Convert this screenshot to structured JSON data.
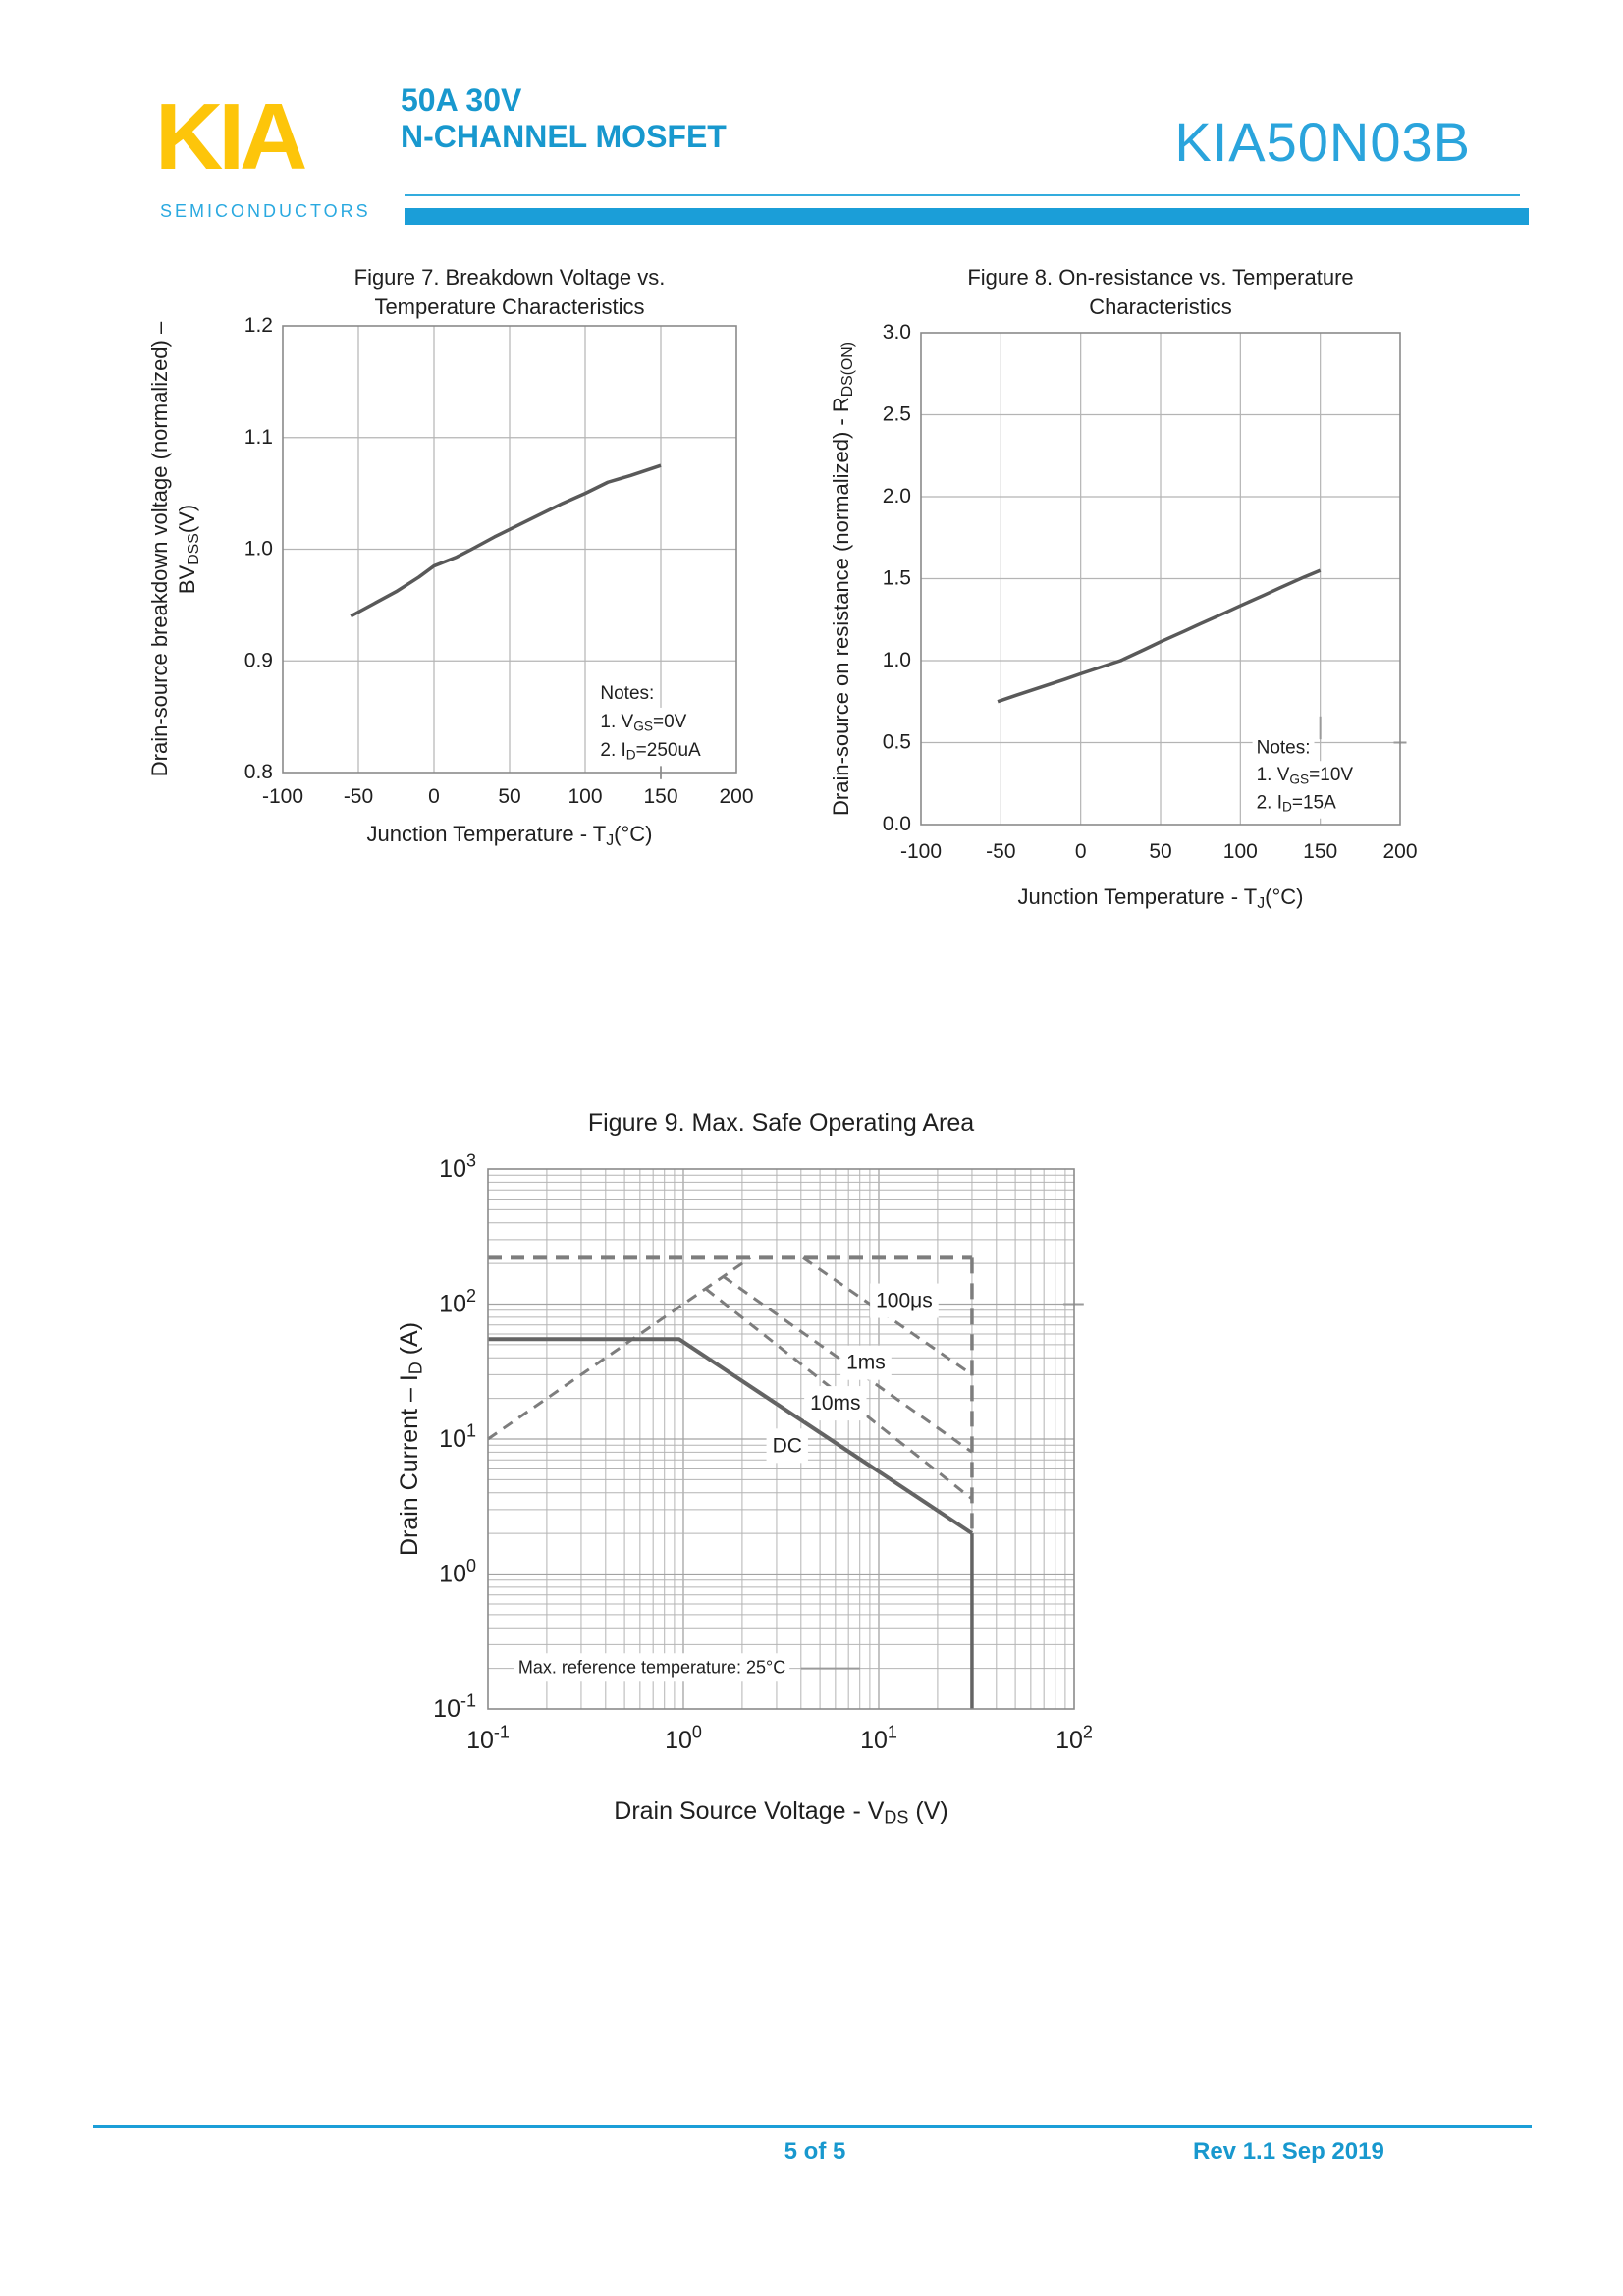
{
  "header": {
    "logo_text": "KIA",
    "logo_subtext": "SEMICONDUCTORS",
    "subtitle_line1": "50A 30V",
    "subtitle_line2": "N-CHANNEL MOSFET",
    "part_number": "KIA50N03B",
    "colors": {
      "logo_yellow": "#FDC50A",
      "subtitle_blue": "#1898CE",
      "part_number_cyan": "#2AA4DC",
      "rule_cyan": "#1B9ED8"
    }
  },
  "footer": {
    "page_indicator": "5 of 5",
    "revision": "Rev 1.1 Sep 2019"
  },
  "chart_data": [
    {
      "id": "figure7",
      "type": "line",
      "title_lines": [
        "Figure 7. Breakdown Voltage vs.",
        "Temperature Characteristics"
      ],
      "xlabel": "Junction Temperature - T~J~(°C)",
      "ylabel_lines": [
        "Drain-source breakdown voltage (normalized)  –",
        "BV~DSS~(V)"
      ],
      "xlim": [
        -100,
        200
      ],
      "ylim": [
        0.8,
        1.2
      ],
      "xticks": [
        -100,
        -50,
        0,
        50,
        100,
        150,
        200
      ],
      "xtick_labels": [
        "-100",
        "-50",
        "0",
        "50",
        "100",
        "150",
        "200"
      ],
      "yticks": [
        0.8,
        0.9,
        1.0,
        1.1,
        1.2
      ],
      "ytick_labels": [
        "0.8",
        "0.9",
        "1.0",
        "1.1",
        "1.2"
      ],
      "grid": true,
      "series": [
        {
          "name": "breakdown-voltage-normalized",
          "dash": null,
          "width": 3.5,
          "points": [
            [
              -55,
              0.94
            ],
            [
              -40,
              0.951
            ],
            [
              -25,
              0.962
            ],
            [
              -10,
              0.975
            ],
            [
              0,
              0.985
            ],
            [
              15,
              0.993
            ],
            [
              25,
              1.0
            ],
            [
              40,
              1.011
            ],
            [
              55,
              1.021
            ],
            [
              70,
              1.031
            ],
            [
              85,
              1.041
            ],
            [
              100,
              1.05
            ],
            [
              115,
              1.06
            ],
            [
              130,
              1.066
            ],
            [
              150,
              1.075
            ]
          ]
        }
      ],
      "notes": [
        {
          "text": "Notes:",
          "x": 110,
          "y": 0.866
        },
        {
          "text": "1. V~GS~=0V",
          "x": 110,
          "y": 0.8405
        },
        {
          "text": "2. I~D~=250uA",
          "x": 110,
          "y": 0.815
        }
      ],
      "artifact_segments": [
        {
          "points": [
            [
              150,
              0.794
            ],
            [
              150,
              0.834
            ]
          ]
        }
      ]
    },
    {
      "id": "figure8",
      "type": "line",
      "title_lines": [
        "Figure 8. On-resistance vs. Temperature",
        "Characteristics"
      ],
      "xlabel": "Junction Temperature - T~J~(°C)",
      "ylabel_lines": [
        "Drain-source on resistance (normalized) - R~DS(ON)~"
      ],
      "xlim": [
        -100,
        200
      ],
      "ylim": [
        0.0,
        3.0
      ],
      "xticks": [
        -100,
        -50,
        0,
        50,
        100,
        150,
        200
      ],
      "xtick_labels": [
        "-100",
        "-50",
        "0",
        "50",
        "100",
        "150",
        "200"
      ],
      "yticks": [
        0.0,
        0.5,
        1.0,
        1.5,
        2.0,
        2.5,
        3.0
      ],
      "ytick_labels": [
        "0.0",
        "0.5",
        "1.0",
        "1.5",
        "2.0",
        "2.5",
        "3.0"
      ],
      "grid": true,
      "series": [
        {
          "name": "on-resistance-normalized",
          "dash": null,
          "width": 3.5,
          "points": [
            [
              -52,
              0.75
            ],
            [
              -40,
              0.79
            ],
            [
              -25,
              0.838
            ],
            [
              -10,
              0.886
            ],
            [
              0,
              0.92
            ],
            [
              10,
              0.952
            ],
            [
              25,
              1.0
            ],
            [
              40,
              1.068
            ],
            [
              50,
              1.115
            ],
            [
              65,
              1.18
            ],
            [
              75,
              1.225
            ],
            [
              90,
              1.29
            ],
            [
              100,
              1.335
            ],
            [
              115,
              1.4
            ],
            [
              125,
              1.445
            ],
            [
              140,
              1.51
            ],
            [
              150,
              1.55
            ]
          ]
        }
      ],
      "notes": [
        {
          "text": "Notes:",
          "x": 110,
          "y": 0.435
        },
        {
          "text": "1. V~GS~=10V",
          "x": 110,
          "y": 0.268
        },
        {
          "text": "2. I~D~=15A",
          "x": 110,
          "y": 0.1
        }
      ],
      "artifact_segments": [
        {
          "points": [
            [
              150,
              0.52
            ],
            [
              150,
              0.66
            ]
          ]
        },
        {
          "points": [
            [
              196,
              0.5
            ],
            [
              204,
              0.5
            ]
          ]
        }
      ]
    },
    {
      "id": "figure9",
      "type": "loglog",
      "title_lines": [
        "Figure 9. Max. Safe Operating Area"
      ],
      "xlabel": "Drain Source Voltage  -  V~DS~ (V)",
      "ylabel_lines": [
        "Drain Current – I~D~ (A)"
      ],
      "xlim_exp": [
        -1,
        2
      ],
      "ylim_exp": [
        -1,
        3
      ],
      "xtick_labels": [
        "10^-1^",
        "10^0^",
        "10^1^",
        "10^2^"
      ],
      "ytick_labels": [
        "10^-1^",
        "10^0^",
        "10^1^",
        "10^2^",
        "10^3^"
      ],
      "grid": true,
      "series": [
        {
          "name": "pulsed-current-limit",
          "dash": "14 9",
          "width": 4,
          "points": [
            [
              0.1,
              220
            ],
            [
              30,
              220
            ]
          ]
        },
        {
          "name": "voltage-limit-dashed",
          "dash": "16 10",
          "width": 3.5,
          "points": [
            [
              30,
              220
            ],
            [
              30,
              2
            ]
          ]
        },
        {
          "name": "rdson-limit",
          "dash": "11 8",
          "width": 3,
          "points": [
            [
              0.1,
              10
            ],
            [
              2.2,
              220
            ]
          ]
        },
        {
          "name": "100us",
          "dash": "11 8",
          "width": 3,
          "points": [
            [
              4.1,
              220
            ],
            [
              30,
              30
            ]
          ]
        },
        {
          "name": "1ms",
          "dash": "11 8",
          "width": 3,
          "points": [
            [
              1.6,
              160
            ],
            [
              30,
              8
            ]
          ]
        },
        {
          "name": "10ms",
          "dash": "11 8",
          "width": 3,
          "points": [
            [
              1.3,
              130
            ],
            [
              30,
              3.6
            ]
          ]
        },
        {
          "name": "DC",
          "dash": null,
          "width": 4,
          "points": [
            [
              0.1,
              55
            ],
            [
              0.95,
              55
            ],
            [
              30,
              2
            ]
          ]
        },
        {
          "name": "voltage-limit-solid",
          "dash": null,
          "width": 3.5,
          "points": [
            [
              30,
              2
            ],
            [
              30,
              0.1
            ]
          ]
        }
      ],
      "curve_labels": [
        {
          "text": "100μs",
          "x": 13.5,
          "y": 95
        },
        {
          "text": "1ms",
          "x": 8.6,
          "y": 33
        },
        {
          "text": "10ms",
          "x": 6.0,
          "y": 16.5
        },
        {
          "text": "DC",
          "x": 3.4,
          "y": 8
        }
      ],
      "notes": [
        {
          "text": "Max. reference temperature: 25°C",
          "x": 0.143,
          "y": 0.185
        }
      ],
      "artifact_segments": [
        {
          "points": [
            [
              88,
              100
            ],
            [
              112,
              100
            ]
          ]
        },
        {
          "points": [
            [
              4,
              0.2
            ],
            [
              8,
              0.2
            ]
          ]
        }
      ]
    }
  ]
}
